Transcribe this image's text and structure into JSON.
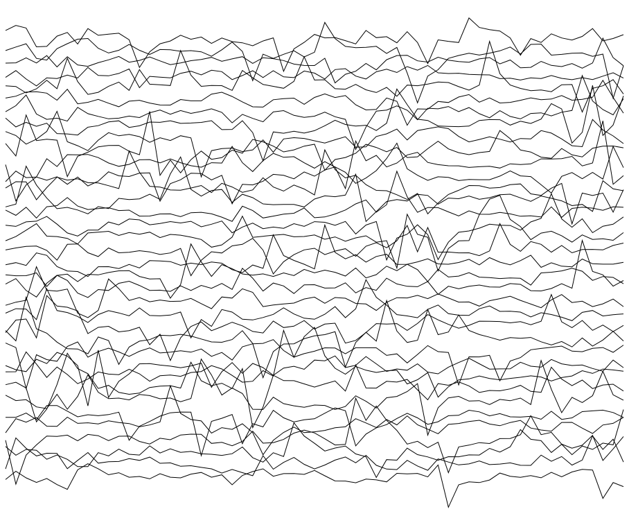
{
  "chart_data": {
    "type": "line",
    "style": "stacked-offset-traces",
    "title": "",
    "xlabel": "",
    "ylabel": "",
    "axes_visible": false,
    "grid": false,
    "legend": "none",
    "line_color": "#000000",
    "background_color": "#ffffff",
    "x_count": 61,
    "ylim": [
      -36,
      1
    ],
    "baselines": [
      0,
      -1,
      -2,
      -3,
      -4,
      -5,
      -6,
      -7,
      -8,
      -9,
      -10,
      -11,
      -12,
      -13,
      -14,
      -15,
      -16,
      -17,
      -18,
      -19,
      -20,
      -21,
      -22,
      -23,
      -24,
      -25,
      -26,
      -27,
      -28,
      -29,
      -30,
      -31,
      -32,
      -33,
      -34,
      -35
    ],
    "series_count": 36,
    "generator_seed": 7319,
    "activity_profile": [
      {
        "from": 0,
        "to": 2,
        "level": 2.4
      },
      {
        "from": 3,
        "to": 8,
        "level": 3.2
      },
      {
        "from": 9,
        "to": 14,
        "level": 1.6
      },
      {
        "from": 15,
        "to": 19,
        "level": 1.0
      },
      {
        "from": 20,
        "to": 26,
        "level": 2.8
      },
      {
        "from": 27,
        "to": 33,
        "level": 1.8
      },
      {
        "from": 34,
        "to": 42,
        "level": 2.6
      },
      {
        "from": 43,
        "to": 50,
        "level": 1.4
      },
      {
        "from": 51,
        "to": 60,
        "level": 2.2
      }
    ]
  }
}
